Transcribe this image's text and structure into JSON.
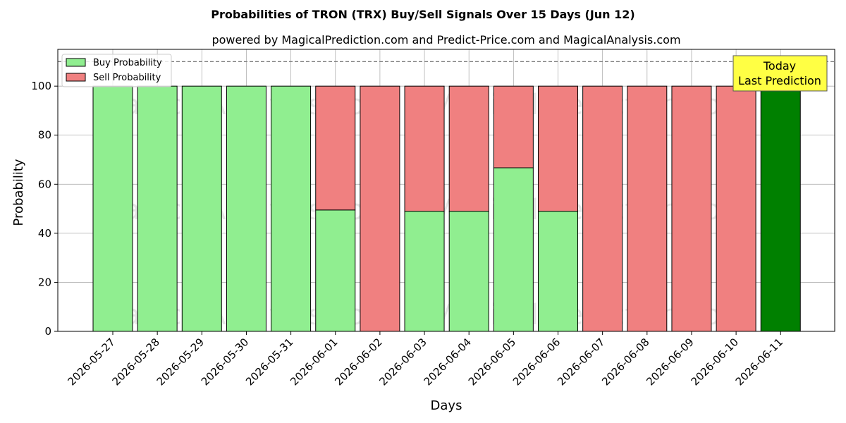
{
  "chart_data": {
    "type": "bar",
    "title": "Probabilities of TRON (TRX) Buy/Sell Signals Over 15 Days (Jun 12)",
    "subtitle": "powered by MagicalPrediction.com and Predict-Price.com and MagicalAnalysis.com",
    "xlabel": "Days",
    "ylabel": "Probability",
    "ylim": [
      0,
      115
    ],
    "yticks": [
      0,
      20,
      40,
      60,
      80,
      100
    ],
    "reference_line": 110,
    "grid": true,
    "legend_position": "top-left",
    "categories": [
      "2026-05-27",
      "2026-05-28",
      "2026-05-29",
      "2026-05-30",
      "2026-05-31",
      "2026-06-01",
      "2026-06-02",
      "2026-06-03",
      "2026-06-04",
      "2026-06-05",
      "2026-06-06",
      "2026-06-07",
      "2026-06-08",
      "2026-06-09",
      "2026-06-10",
      "2026-06-11"
    ],
    "series": [
      {
        "name": "Buy Probability",
        "color": "#90ee90",
        "values": [
          100,
          100,
          100,
          100,
          100,
          49.5,
          0,
          49,
          49,
          66.7,
          49,
          0,
          0,
          0,
          0,
          100
        ]
      },
      {
        "name": "Sell Probability",
        "color": "#f08080",
        "values": [
          0,
          0,
          0,
          0,
          0,
          50.5,
          100,
          51,
          51,
          33.3,
          51,
          100,
          100,
          100,
          100,
          0
        ]
      }
    ],
    "highlight": {
      "index": 15,
      "color": "#008000",
      "label_line1": "Today",
      "label_line2": "Last Prediction",
      "label_color": "#ffff44"
    },
    "watermarks": [
      "MagicalAnalysis.com",
      "MagicalPrediction.com"
    ]
  }
}
